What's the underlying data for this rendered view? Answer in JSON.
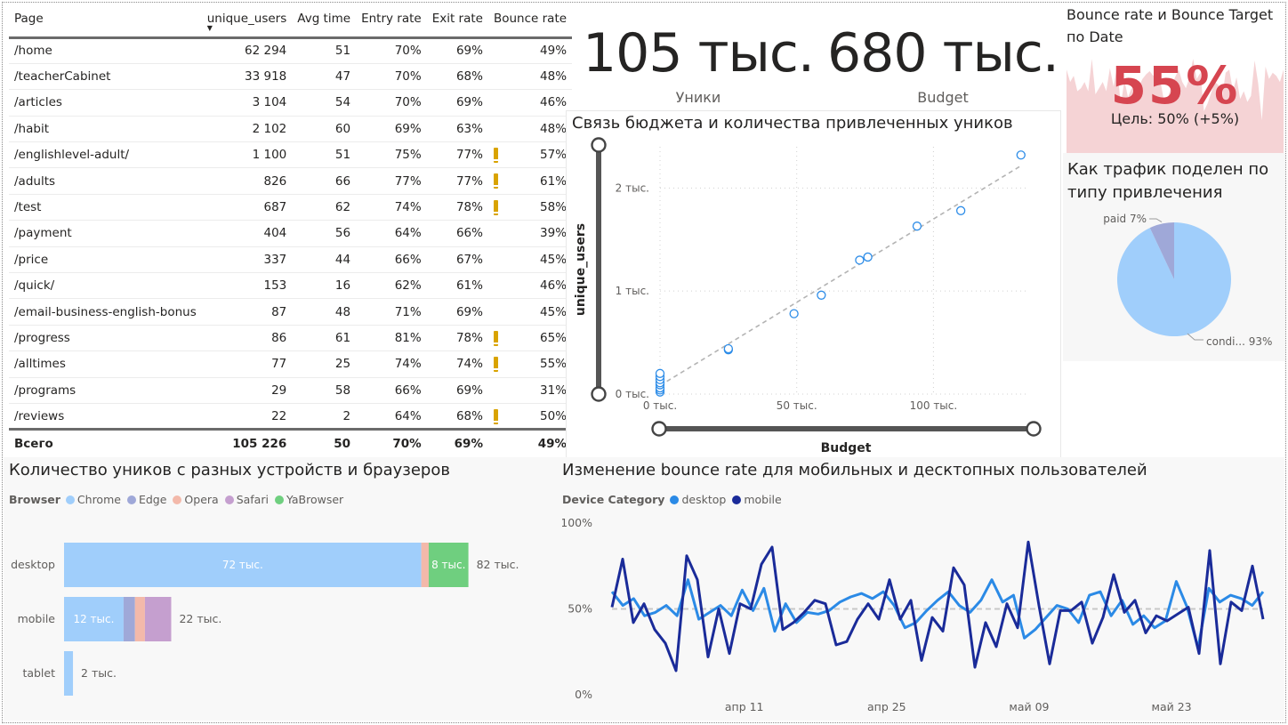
{
  "table": {
    "columns": [
      "Page",
      "unique_users",
      "Avg time",
      "Entry rate",
      "Exit rate",
      "Bounce rate"
    ],
    "sorted_column": "unique_users",
    "rows": [
      {
        "page": "/home",
        "users": "62 294",
        "avg": "51",
        "entry": "70%",
        "exit": "69%",
        "bounce": "49%",
        "warn": false
      },
      {
        "page": "/teacherCabinet",
        "users": "33 918",
        "avg": "47",
        "entry": "70%",
        "exit": "68%",
        "bounce": "48%",
        "warn": false
      },
      {
        "page": "/articles",
        "users": "3 104",
        "avg": "54",
        "entry": "70%",
        "exit": "69%",
        "bounce": "46%",
        "warn": false
      },
      {
        "page": "/habit",
        "users": "2 102",
        "avg": "60",
        "entry": "69%",
        "exit": "63%",
        "bounce": "48%",
        "warn": false
      },
      {
        "page": "/englishlevel-adult/",
        "users": "1 100",
        "avg": "51",
        "entry": "75%",
        "exit": "77%",
        "bounce": "57%",
        "warn": true
      },
      {
        "page": "/adults",
        "users": "826",
        "avg": "66",
        "entry": "77%",
        "exit": "77%",
        "bounce": "61%",
        "warn": true
      },
      {
        "page": "/test",
        "users": "687",
        "avg": "62",
        "entry": "74%",
        "exit": "78%",
        "bounce": "58%",
        "warn": true
      },
      {
        "page": "/payment",
        "users": "404",
        "avg": "56",
        "entry": "64%",
        "exit": "66%",
        "bounce": "39%",
        "warn": false
      },
      {
        "page": "/price",
        "users": "337",
        "avg": "44",
        "entry": "66%",
        "exit": "67%",
        "bounce": "45%",
        "warn": false
      },
      {
        "page": "/quick/",
        "users": "153",
        "avg": "16",
        "entry": "62%",
        "exit": "61%",
        "bounce": "46%",
        "warn": false
      },
      {
        "page": "/email-business-english-bonus",
        "users": "87",
        "avg": "48",
        "entry": "71%",
        "exit": "69%",
        "bounce": "45%",
        "warn": false
      },
      {
        "page": "/progress",
        "users": "86",
        "avg": "61",
        "entry": "81%",
        "exit": "78%",
        "bounce": "65%",
        "warn": true
      },
      {
        "page": "/alltimes",
        "users": "77",
        "avg": "25",
        "entry": "74%",
        "exit": "74%",
        "bounce": "55%",
        "warn": true
      },
      {
        "page": "/programs",
        "users": "29",
        "avg": "58",
        "entry": "66%",
        "exit": "69%",
        "bounce": "31%",
        "warn": false
      },
      {
        "page": "/reviews",
        "users": "22",
        "avg": "2",
        "entry": "64%",
        "exit": "68%",
        "bounce": "50%",
        "warn": true
      }
    ],
    "total": {
      "page": "Всего",
      "users": "105 226",
      "avg": "50",
      "entry": "70%",
      "exit": "69%",
      "bounce": "49%"
    }
  },
  "kpis": {
    "uniques": {
      "value": "105 тыс.",
      "label": "Уники"
    },
    "budget": {
      "value": "680 тыс.",
      "label": "Budget"
    }
  },
  "bounce_kpi": {
    "title": "Bounce rate и Bounce Target по Date",
    "value": "55%",
    "goal": "Цель: 50% (+5%)",
    "color": "#d64550",
    "area_color": "#f2c4c7"
  },
  "chart_data": [
    {
      "type": "scatter",
      "title": "Связь бюджета и количества привлеченных уников",
      "xlabel": "Budget",
      "ylabel": "unique_users",
      "xlim": [
        0,
        135000
      ],
      "ylim": [
        0,
        2400
      ],
      "x_ticks": [
        0,
        50000,
        100000
      ],
      "x_tick_labels": [
        "0 тыс.",
        "50 тыс.",
        "100 тыс."
      ],
      "y_ticks": [
        0,
        1000,
        2000
      ],
      "y_tick_labels": [
        "0 тыс.",
        "1 тыс.",
        "2 тыс."
      ],
      "trendline": true,
      "point_color": "#2e8de8",
      "points": [
        {
          "x": 0,
          "y": 20
        },
        {
          "x": 0,
          "y": 40
        },
        {
          "x": 0,
          "y": 60
        },
        {
          "x": 0,
          "y": 90
        },
        {
          "x": 0,
          "y": 110
        },
        {
          "x": 0,
          "y": 140
        },
        {
          "x": 0,
          "y": 170
        },
        {
          "x": 0,
          "y": 200
        },
        {
          "x": 25000,
          "y": 430
        },
        {
          "x": 25000,
          "y": 440
        },
        {
          "x": 49000,
          "y": 780
        },
        {
          "x": 59000,
          "y": 960
        },
        {
          "x": 73000,
          "y": 1300
        },
        {
          "x": 76000,
          "y": 1330
        },
        {
          "x": 94000,
          "y": 1630
        },
        {
          "x": 110000,
          "y": 1780
        },
        {
          "x": 132000,
          "y": 2320
        }
      ]
    },
    {
      "type": "pie",
      "title": "Как трафик поделен по типу привлечения",
      "slices": [
        {
          "label": "paid",
          "value": 7,
          "text": "paid 7%",
          "color": "#9fa8d8"
        },
        {
          "label": "condi...",
          "value": 93,
          "text": "condi... 93%",
          "color": "#a0cefb"
        }
      ]
    },
    {
      "type": "bar",
      "title": "Количество уников с разных устройств и браузеров",
      "legend_title": "Browser",
      "categories": [
        "desktop",
        "mobile",
        "tablet"
      ],
      "xlim": [
        0,
        90000
      ],
      "series": [
        {
          "name": "Chrome",
          "color": "#a0cefb",
          "values": [
            72000,
            12000,
            1800
          ]
        },
        {
          "name": "Edge",
          "color": "#9fa8d8",
          "values": [
            0,
            2300,
            0
          ]
        },
        {
          "name": "Opera",
          "color": "#f3b9aa",
          "values": [
            1500,
            2000,
            0
          ]
        },
        {
          "name": "Safari",
          "color": "#c59fcf",
          "values": [
            0,
            5300,
            0
          ]
        },
        {
          "name": "YaBrowser",
          "color": "#6fcf7f",
          "values": [
            8000,
            0,
            0
          ]
        }
      ],
      "segment_labels": [
        {
          "category": "desktop",
          "series": "Chrome",
          "text": "72 тыс."
        },
        {
          "category": "desktop",
          "series": "YaBrowser",
          "text": "8 тыс."
        },
        {
          "category": "mobile",
          "series": "Chrome",
          "text": "12 тыс."
        }
      ],
      "totals": [
        "82 тыс.",
        "22 тыс.",
        "2 тыс."
      ],
      "totals_values": [
        82000,
        22000,
        2000
      ]
    },
    {
      "type": "line",
      "title": "Изменение bounce rate для мобильных и десктопных пользователей",
      "legend_title": "Device Category",
      "ylim": [
        0,
        100
      ],
      "y_ticks": [
        0,
        50,
        100
      ],
      "y_tick_labels": [
        "0%",
        "50%",
        "100%"
      ],
      "x_start": "2023-03-29",
      "x_end": "2023-06-01",
      "x_tick_dates": [
        "2023-04-11",
        "2023-04-25",
        "2023-05-09",
        "2023-05-23"
      ],
      "x_tick_labels": [
        "апр 11",
        "апр 25",
        "май 09",
        "май 23"
      ],
      "reference_line": 50,
      "series": [
        {
          "name": "desktop",
          "color": "#2b8ae6",
          "values": [
            60,
            52,
            56,
            46,
            48,
            52,
            46,
            67,
            44,
            48,
            52,
            46,
            61,
            49,
            62,
            37,
            53,
            42,
            48,
            47,
            49,
            54,
            57,
            59,
            56,
            60,
            52,
            39,
            42,
            49,
            55,
            60,
            52,
            48,
            55,
            67,
            54,
            58,
            33,
            38,
            45,
            52,
            50,
            42,
            58,
            60,
            46,
            55,
            41,
            46,
            39,
            43,
            66,
            51,
            27,
            62,
            54,
            58,
            56,
            52,
            60
          ]
        },
        {
          "name": "mobile",
          "color": "#1a2b99",
          "values": [
            51,
            79,
            42,
            53,
            38,
            30,
            14,
            81,
            67,
            22,
            50,
            24,
            53,
            50,
            76,
            86,
            38,
            42,
            48,
            55,
            53,
            29,
            31,
            44,
            53,
            44,
            67,
            44,
            55,
            20,
            45,
            37,
            74,
            64,
            16,
            42,
            28,
            53,
            39,
            89,
            52,
            18,
            49,
            49,
            54,
            30,
            45,
            70,
            48,
            55,
            36,
            46,
            43,
            47,
            51,
            24,
            84,
            18,
            54,
            49,
            75,
            44
          ]
        }
      ]
    }
  ]
}
